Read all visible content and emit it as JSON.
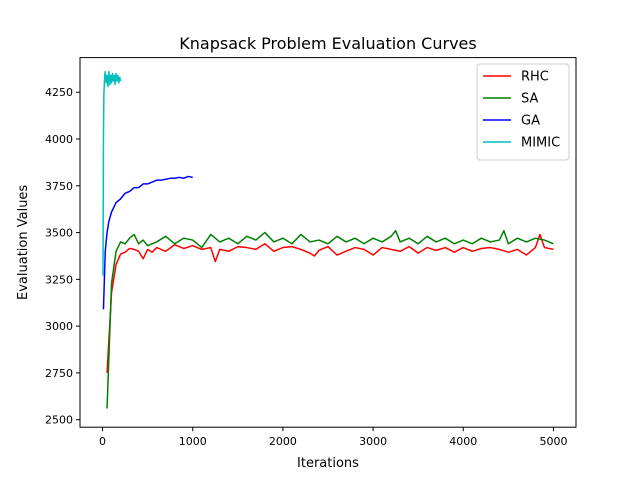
{
  "chart_data": {
    "type": "line",
    "title": "Knapsack Problem Evaluation Curves",
    "xlabel": "Iterations",
    "ylabel": "Evaluation Values",
    "xlim": [
      -250,
      5250
    ],
    "ylim": [
      2460,
      4435
    ],
    "xticks": [
      0,
      1000,
      2000,
      3000,
      4000,
      5000
    ],
    "yticks": [
      2500,
      2750,
      3000,
      3250,
      3500,
      3750,
      4000,
      4250
    ],
    "grid": false,
    "legend_position": "upper-right",
    "series": [
      {
        "name": "RHC",
        "color": "#ff0000",
        "x": [
          50,
          100,
          150,
          200,
          250,
          300,
          350,
          400,
          450,
          500,
          550,
          600,
          700,
          800,
          900,
          1000,
          1100,
          1200,
          1250,
          1300,
          1400,
          1500,
          1600,
          1700,
          1800,
          1900,
          2000,
          2100,
          2200,
          2300,
          2350,
          2400,
          2500,
          2600,
          2700,
          2800,
          2900,
          3000,
          3100,
          3200,
          3300,
          3400,
          3500,
          3600,
          3700,
          3800,
          3900,
          4000,
          4100,
          4200,
          4300,
          4400,
          4500,
          4600,
          4700,
          4800,
          4850,
          4900,
          5000
        ],
        "y": [
          2750,
          3180,
          3330,
          3385,
          3395,
          3415,
          3410,
          3400,
          3360,
          3410,
          3395,
          3420,
          3400,
          3435,
          3415,
          3430,
          3410,
          3420,
          3345,
          3410,
          3400,
          3425,
          3420,
          3410,
          3440,
          3400,
          3420,
          3425,
          3410,
          3390,
          3375,
          3405,
          3425,
          3380,
          3400,
          3420,
          3410,
          3380,
          3420,
          3410,
          3400,
          3425,
          3390,
          3420,
          3405,
          3420,
          3395,
          3420,
          3400,
          3415,
          3420,
          3410,
          3395,
          3410,
          3380,
          3420,
          3490,
          3420,
          3410
        ]
      },
      {
        "name": "SA",
        "color": "#008000",
        "x": [
          50,
          100,
          150,
          200,
          250,
          300,
          350,
          400,
          450,
          500,
          600,
          700,
          800,
          900,
          1000,
          1100,
          1200,
          1300,
          1400,
          1500,
          1600,
          1700,
          1800,
          1900,
          2000,
          2100,
          2200,
          2300,
          2400,
          2500,
          2600,
          2700,
          2800,
          2900,
          3000,
          3100,
          3200,
          3250,
          3300,
          3400,
          3500,
          3600,
          3700,
          3800,
          3900,
          4000,
          4100,
          4200,
          4300,
          4400,
          4450,
          4500,
          4600,
          4700,
          4800,
          4900,
          5000
        ],
        "y": [
          2560,
          3230,
          3400,
          3450,
          3440,
          3470,
          3490,
          3440,
          3460,
          3430,
          3450,
          3480,
          3440,
          3470,
          3460,
          3420,
          3490,
          3450,
          3470,
          3440,
          3480,
          3460,
          3500,
          3450,
          3470,
          3440,
          3490,
          3450,
          3460,
          3440,
          3480,
          3450,
          3470,
          3440,
          3470,
          3450,
          3480,
          3510,
          3450,
          3470,
          3440,
          3480,
          3450,
          3470,
          3440,
          3460,
          3440,
          3470,
          3450,
          3460,
          3510,
          3440,
          3470,
          3450,
          3470,
          3460,
          3440
        ]
      },
      {
        "name": "GA",
        "color": "#0000ff",
        "x": [
          10,
          30,
          50,
          70,
          100,
          150,
          200,
          250,
          300,
          350,
          400,
          450,
          500,
          550,
          600,
          650,
          700,
          750,
          800,
          850,
          900,
          950,
          1000
        ],
        "y": [
          3090,
          3400,
          3500,
          3560,
          3610,
          3660,
          3680,
          3710,
          3720,
          3740,
          3740,
          3760,
          3760,
          3770,
          3780,
          3780,
          3785,
          3790,
          3790,
          3795,
          3790,
          3800,
          3795
        ]
      },
      {
        "name": "MIMIC",
        "color": "#00bfbf",
        "x": [
          5,
          10,
          15,
          20,
          25,
          30,
          40,
          50,
          60,
          70,
          80,
          90,
          100,
          110,
          120,
          130,
          140,
          150,
          160,
          170,
          180,
          190,
          200
        ],
        "y": [
          3270,
          4000,
          4240,
          4300,
          4340,
          4360,
          4300,
          4340,
          4280,
          4360,
          4290,
          4340,
          4300,
          4350,
          4310,
          4340,
          4290,
          4350,
          4310,
          4340,
          4300,
          4330,
          4310
        ]
      }
    ]
  }
}
